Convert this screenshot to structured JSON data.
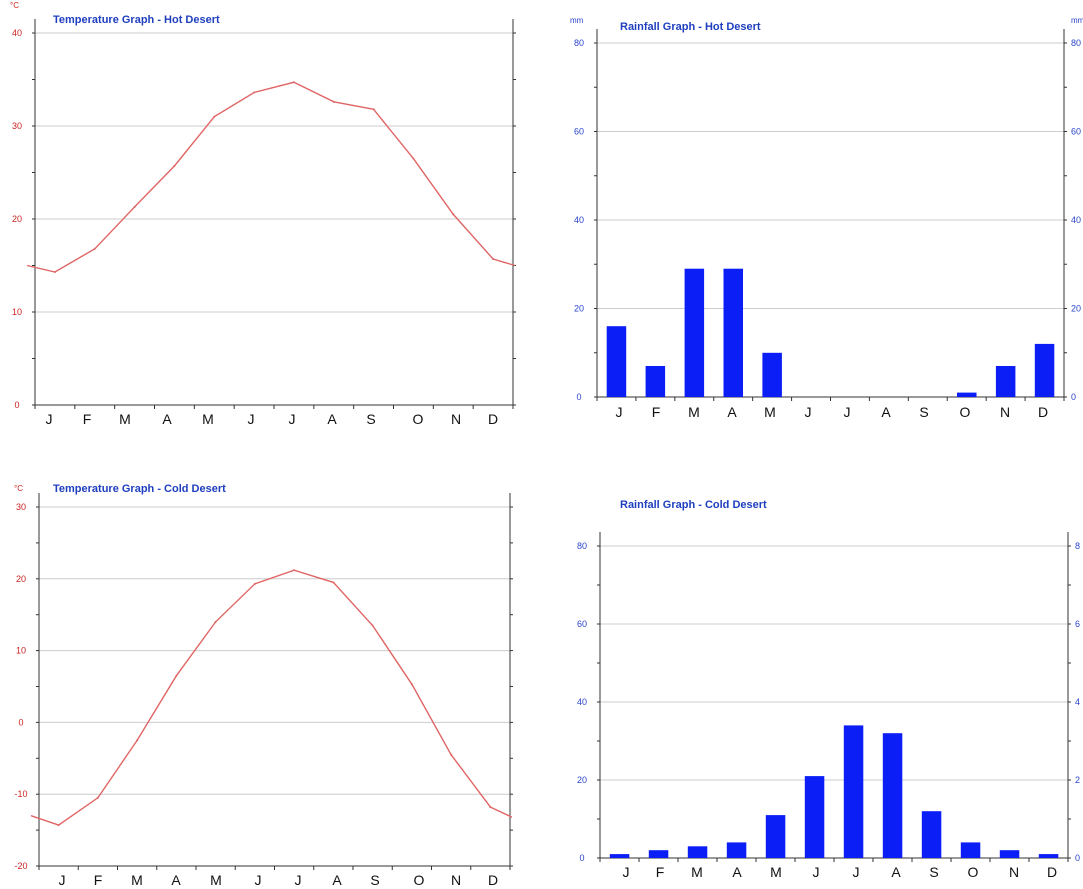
{
  "colors": {
    "temperature_line": "#e06666",
    "temperature_axis": "#cc2222",
    "rainfall_bar": "#0a1ef5",
    "rainfall_axis": "#2a44cc",
    "title": "#1f3fbf"
  },
  "chart_data": [
    {
      "id": "hot-temp",
      "type": "line",
      "title": "Temperature Graph - Hot Desert",
      "unit": "°C",
      "categories": [
        "J",
        "F",
        "M",
        "A",
        "M",
        "J",
        "J",
        "A",
        "S",
        "O",
        "N",
        "D"
      ],
      "series": [
        {
          "values": [
            14.3,
            16.8,
            21.3,
            25.7,
            31.0,
            33.6,
            34.7,
            32.6,
            31.8,
            26.5,
            20.5,
            15.7
          ]
        }
      ],
      "edge_values": [
        15.0,
        15.0
      ],
      "ylim": [
        0,
        40
      ],
      "yticks": [
        0,
        10,
        20,
        30,
        40
      ]
    },
    {
      "id": "hot-rain",
      "type": "bar",
      "title": "Rainfall Graph - Hot Desert",
      "unit": "mm",
      "categories": [
        "J",
        "F",
        "M",
        "A",
        "M",
        "J",
        "J",
        "A",
        "S",
        "O",
        "N",
        "D"
      ],
      "values": [
        16,
        7,
        29,
        29,
        10,
        0,
        0,
        0,
        0,
        1,
        7,
        12
      ],
      "ylim": [
        0,
        80
      ],
      "yticks": [
        0,
        20,
        40,
        60,
        80
      ]
    },
    {
      "id": "cold-temp",
      "type": "line",
      "title": "Temperature Graph - Cold Desert",
      "unit": "°C",
      "categories": [
        "J",
        "F",
        "M",
        "A",
        "M",
        "J",
        "J",
        "A",
        "S",
        "O",
        "N",
        "D"
      ],
      "series": [
        {
          "values": [
            -14.3,
            -10.5,
            -2.5,
            6.5,
            14.0,
            19.3,
            21.2,
            19.5,
            13.5,
            5.3,
            -4.5,
            -11.8
          ]
        }
      ],
      "edge_values": [
        -13.0,
        -13.2
      ],
      "ylim": [
        -20,
        30
      ],
      "yticks": [
        -20,
        -10,
        0,
        10,
        20,
        30
      ]
    },
    {
      "id": "cold-rain",
      "type": "bar",
      "title": "Rainfall Graph - Cold Desert",
      "unit": "",
      "categories": [
        "J",
        "F",
        "M",
        "A",
        "M",
        "J",
        "J",
        "A",
        "S",
        "O",
        "N",
        "D"
      ],
      "values": [
        1,
        2,
        3,
        4,
        11,
        21,
        34,
        32,
        12,
        4,
        2,
        1
      ],
      "ylim": [
        0,
        80
      ],
      "yticks": [
        0,
        20,
        40,
        60,
        80
      ],
      "right_ticks": [
        "0",
        "2",
        "4",
        "6",
        "8"
      ]
    }
  ]
}
